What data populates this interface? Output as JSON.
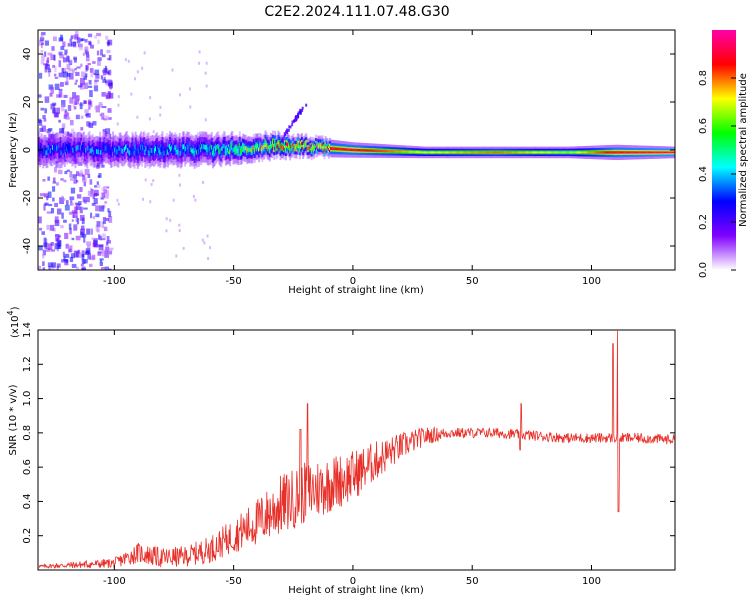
{
  "title": "C2E2.2024.111.07.48.G30",
  "colors": {
    "snr_line": "#e8302a",
    "axis": "#000000"
  },
  "chart_data": [
    {
      "type": "heatmap",
      "name": "spectrogram",
      "xlabel": "Height of straight line (km)",
      "ylabel": "Frequency (Hz)",
      "xlim": [
        -132,
        135
      ],
      "ylim": [
        -50,
        50
      ],
      "xticks": [
        -100,
        -50,
        0,
        50,
        100
      ],
      "yticks": [
        -40,
        -20,
        0,
        20,
        40
      ],
      "colorbar": {
        "label": "Normalized spectral amplitude",
        "range": [
          0,
          1
        ],
        "ticks": [
          0.0,
          0.2,
          0.4,
          0.6,
          0.8
        ],
        "colormap": [
          "#ffffff",
          "#8000ff",
          "#0000ff",
          "#00ffff",
          "#00ff00",
          "#ffff00",
          "#ff0000",
          "#ff00aa"
        ]
      },
      "features": {
        "main_band": [
          [
            -110,
            0,
            4.0,
            0.35
          ],
          [
            -60,
            0,
            4.0,
            0.45
          ],
          [
            -30,
            2,
            3.0,
            0.8
          ],
          [
            0,
            0,
            2.0,
            0.9
          ],
          [
            30,
            -1,
            1.5,
            0.7
          ],
          [
            60,
            -1,
            1.5,
            0.8
          ],
          [
            90,
            -1,
            1.5,
            0.65
          ],
          [
            110,
            -1,
            2.0,
            0.9
          ],
          [
            135,
            -1,
            1.5,
            0.95
          ]
        ],
        "noise_region": [
          -132,
          -102
        ],
        "bump": {
          "x": [
            -30,
            -20
          ],
          "y": [
            5,
            20
          ]
        }
      }
    },
    {
      "type": "line",
      "name": "snr",
      "xlabel": "Height of straight line (km)",
      "ylabel": "SNR (10 * v/v)",
      "multiplier": "(x10",
      "multiplier_exp": "4",
      "xlim": [
        -132,
        135
      ],
      "ylim": [
        0,
        1.4
      ],
      "xticks": [
        -100,
        -50,
        0,
        50,
        100
      ],
      "yticks": [
        0.2,
        0.4,
        0.6,
        0.8,
        1.0,
        1.2,
        1.4
      ],
      "series": [
        {
          "color": "#e8302a",
          "baseline": [
            [
              -132,
              0.02
            ],
            [
              -100,
              0.04
            ],
            [
              -90,
              0.1
            ],
            [
              -80,
              0.07
            ],
            [
              -70,
              0.08
            ],
            [
              -60,
              0.12
            ],
            [
              -50,
              0.2
            ],
            [
              -40,
              0.28
            ],
            [
              -30,
              0.38
            ],
            [
              -20,
              0.45
            ],
            [
              -10,
              0.5
            ],
            [
              0,
              0.55
            ],
            [
              10,
              0.64
            ],
            [
              20,
              0.72
            ],
            [
              30,
              0.78
            ],
            [
              40,
              0.8
            ],
            [
              50,
              0.8
            ],
            [
              60,
              0.8
            ],
            [
              70,
              0.79
            ],
            [
              80,
              0.78
            ],
            [
              90,
              0.77
            ],
            [
              100,
              0.77
            ],
            [
              110,
              0.77
            ],
            [
              120,
              0.77
            ],
            [
              135,
              0.76
            ]
          ],
          "amplitude": [
            [
              -132,
              0.01
            ],
            [
              -100,
              0.03
            ],
            [
              -90,
              0.06
            ],
            [
              -70,
              0.06
            ],
            [
              -50,
              0.1
            ],
            [
              -30,
              0.18
            ],
            [
              -15,
              0.18
            ],
            [
              0,
              0.15
            ],
            [
              20,
              0.08
            ],
            [
              40,
              0.03
            ],
            [
              135,
              0.03
            ]
          ],
          "spikes": [
            [
              -19,
              0.97
            ],
            [
              -22,
              0.82
            ],
            [
              70,
              0.7
            ],
            [
              70.5,
              0.97
            ],
            [
              109,
              1.32
            ],
            [
              111,
              1.4
            ],
            [
              111.3,
              0.34
            ]
          ]
        }
      ]
    }
  ]
}
